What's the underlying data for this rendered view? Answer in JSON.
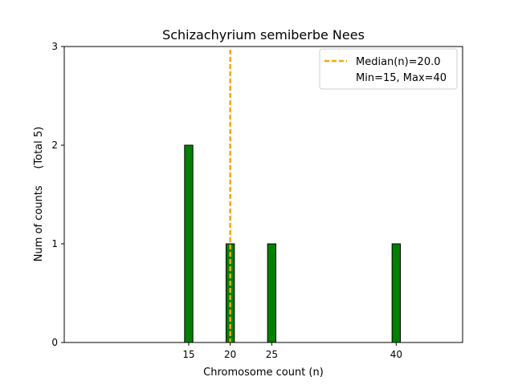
{
  "chart_data": {
    "type": "bar",
    "title": "Schizachyrium semiberbe Nees",
    "xlabel": "Chromosome count (n)",
    "ylabel": "Num of counts     (Total 5)",
    "xlim": [
      0,
      48
    ],
    "ylim": [
      0,
      3
    ],
    "xticks": [
      15,
      20,
      25,
      40
    ],
    "yticks": [
      0,
      1,
      2,
      3
    ],
    "bars": [
      {
        "x": 15,
        "value": 2
      },
      {
        "x": 20,
        "value": 1
      },
      {
        "x": 25,
        "value": 1
      },
      {
        "x": 40,
        "value": 1
      }
    ],
    "bar_width": 1,
    "bar_color": "#008000",
    "median": {
      "value": 20.0,
      "color": "#ffa500"
    },
    "legend": {
      "placement": "top-right",
      "entries": [
        "Median(n)=20.0",
        "Min=15, Max=40"
      ]
    },
    "grid": false
  }
}
